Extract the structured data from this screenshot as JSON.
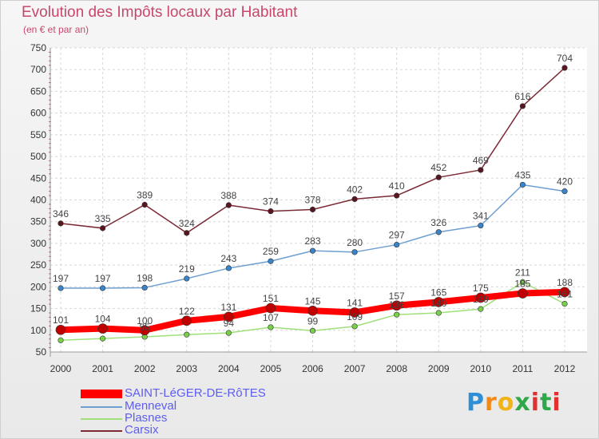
{
  "chart_data": {
    "type": "line",
    "title": "Evolution des Impôts locaux par Habitant",
    "subtitle": "(en € et par an)",
    "x": [
      "2000",
      "2001",
      "2002",
      "2003",
      "2004",
      "2005",
      "2006",
      "2007",
      "2008",
      "2009",
      "2010",
      "2011",
      "2012"
    ],
    "y_ticks": [
      50,
      100,
      150,
      200,
      250,
      300,
      350,
      400,
      450,
      500,
      550,
      600,
      650,
      700,
      750
    ],
    "ylim": [
      50,
      750
    ],
    "grid": true,
    "legend_position": "bottom-left",
    "series": [
      {
        "name": "SAINT-LéGER-DE-RôTES",
        "color": "#ff0000",
        "values": [
          101,
          104,
          100,
          122,
          131,
          151,
          145,
          141,
          157,
          165,
          175,
          185,
          188
        ],
        "labels": [
          "101",
          "104",
          "100",
          "122",
          "131",
          "151",
          "145",
          "141",
          "157",
          "165",
          "175",
          "185",
          "188"
        ]
      },
      {
        "name": "Menneval",
        "color": "#6f9fd0",
        "values": [
          197,
          197,
          198,
          219,
          243,
          259,
          283,
          280,
          297,
          326,
          341,
          435,
          420
        ],
        "labels": [
          "197",
          "197",
          "198",
          "219",
          "243",
          "259",
          "283",
          "280",
          "297",
          "326",
          "341",
          "435",
          "420"
        ]
      },
      {
        "name": "Plasnes",
        "color": "#9fe07a",
        "values": [
          77,
          81,
          85,
          90,
          94,
          107,
          99,
          109,
          136,
          140,
          149,
          211,
          161
        ],
        "labels": [
          "",
          "",
          "85",
          "",
          "94",
          "107",
          "99",
          "109",
          "136",
          "140",
          "149",
          "211",
          "161"
        ]
      },
      {
        "name": "Carsix",
        "color": "#7b2a35",
        "values": [
          346,
          335,
          389,
          324,
          388,
          374,
          378,
          402,
          410,
          452,
          469,
          616,
          704
        ],
        "labels": [
          "346",
          "335",
          "389",
          "324",
          "388",
          "374",
          "378",
          "402",
          "410",
          "452",
          "469",
          "616",
          "704"
        ]
      }
    ]
  },
  "logo": {
    "letters": [
      "P",
      "r",
      "o",
      "x",
      "i",
      "t",
      "i"
    ],
    "colors": [
      "#2f8fd6",
      "#f08a1a",
      "#f0b418",
      "#2fa84a",
      "#e03030",
      "#2fa84a",
      "#e03030"
    ]
  }
}
